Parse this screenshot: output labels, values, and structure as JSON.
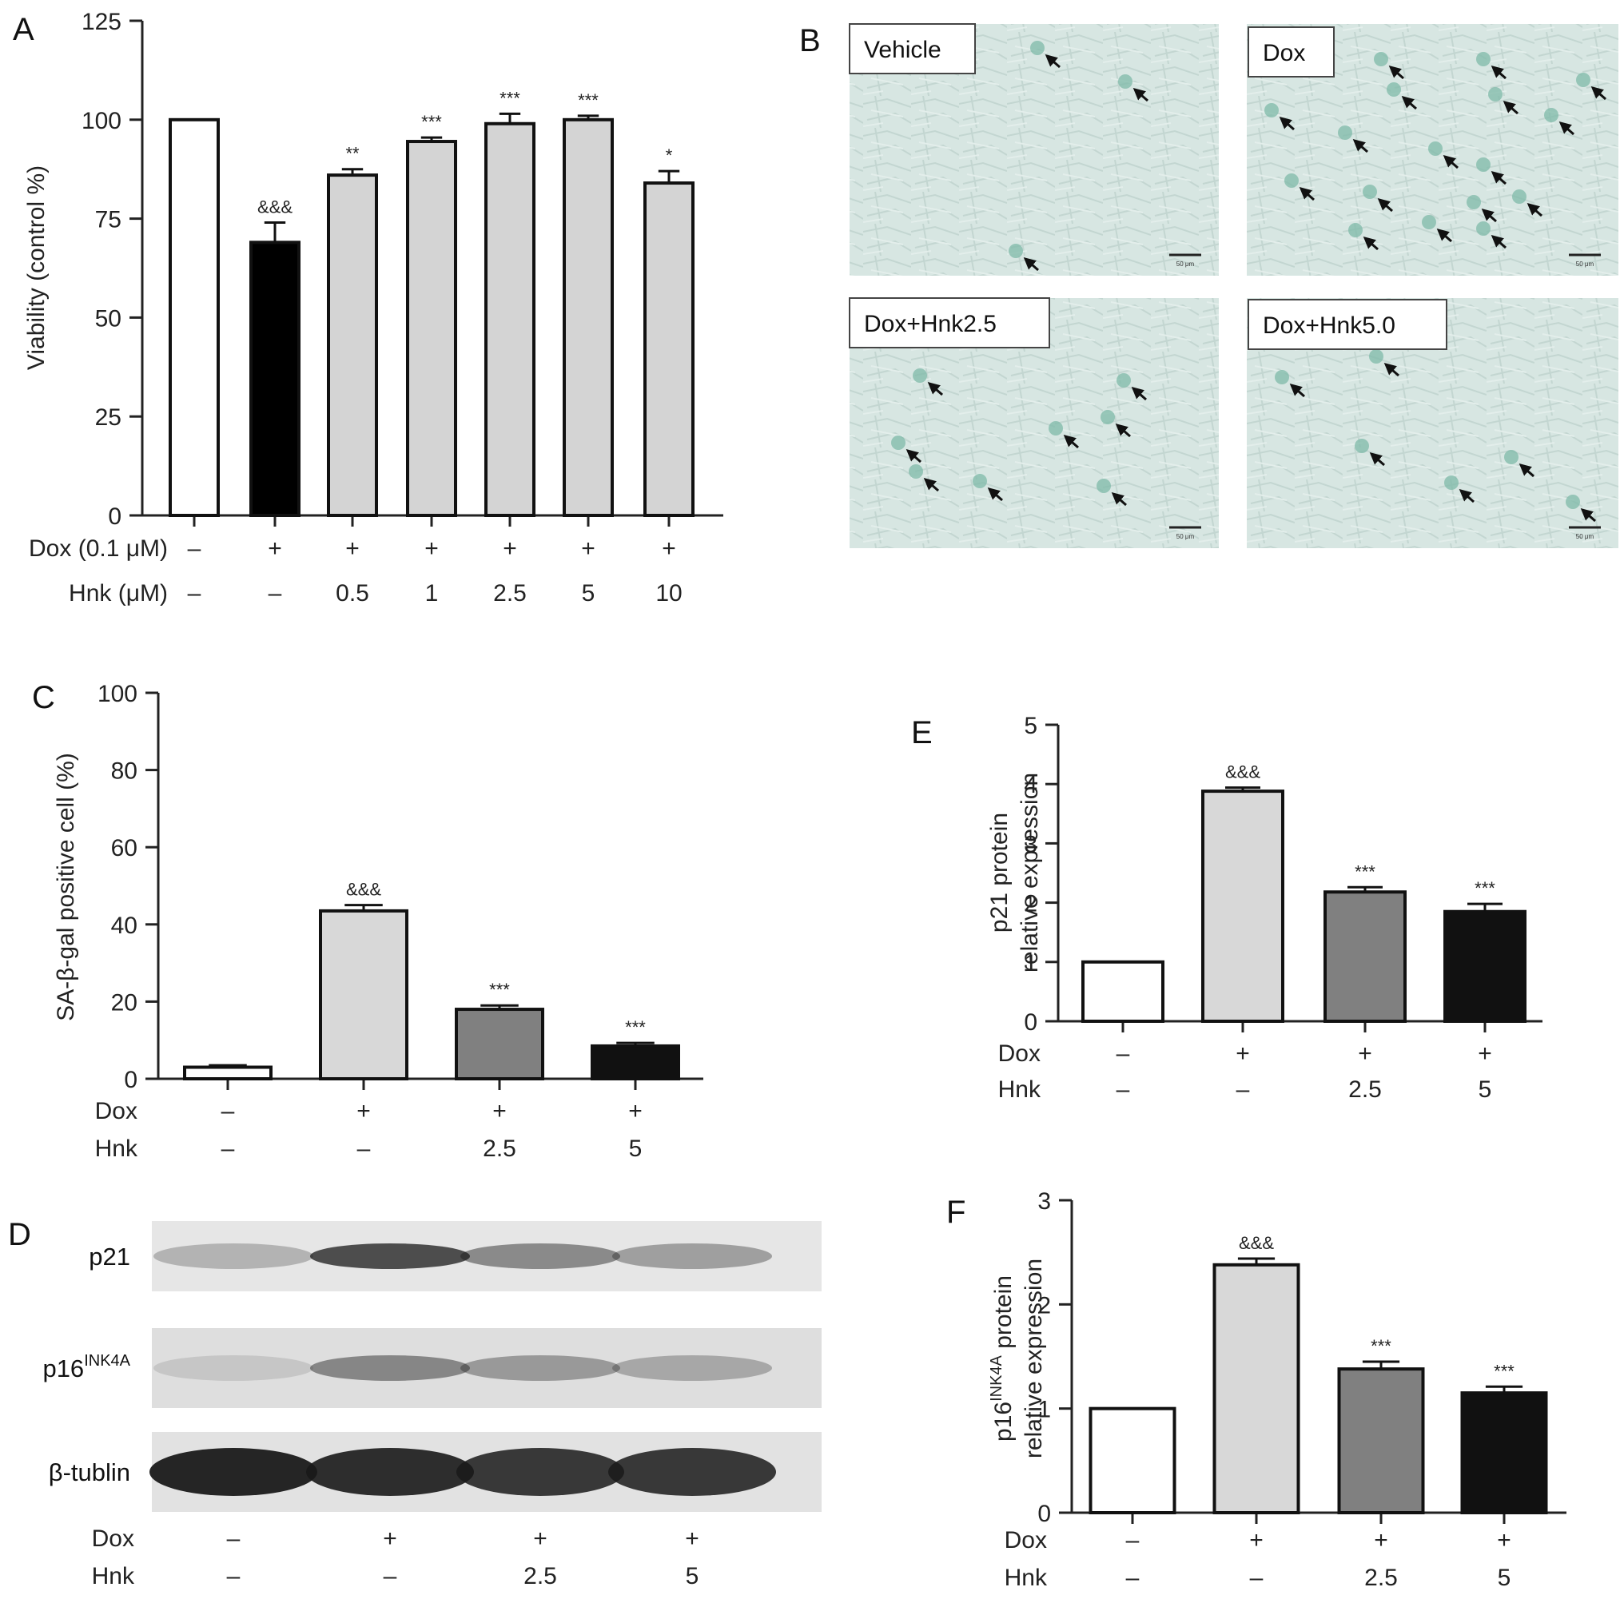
{
  "figure": {
    "panels": [
      "A",
      "B",
      "C",
      "D",
      "E",
      "F"
    ]
  },
  "chart_data": [
    {
      "panel": "A",
      "type": "bar",
      "ylabel": "Viability (control %)",
      "ylim": [
        0,
        125
      ],
      "yticks": [
        0,
        25,
        50,
        75,
        100,
        125
      ],
      "values": [
        100,
        69,
        86,
        94.5,
        99,
        100,
        84
      ],
      "errors": [
        0,
        5,
        1.5,
        1,
        2.5,
        1,
        3
      ],
      "significance": [
        "",
        "&&&",
        "**",
        "***",
        "***",
        "***",
        "*"
      ],
      "fills": [
        "#ffffff",
        "#000000",
        "#d4d4d4",
        "#d4d4d4",
        "#d4d4d4",
        "#d4d4d4",
        "#d4d4d4"
      ],
      "conditions": [
        {
          "label": "Dox (0.1 μM)",
          "values": [
            "–",
            "+",
            "+",
            "+",
            "+",
            "+",
            "+"
          ]
        },
        {
          "label": "Hnk (μM)",
          "values": [
            "–",
            "–",
            "0.5",
            "1",
            "2.5",
            "5",
            "10"
          ]
        }
      ]
    },
    {
      "panel": "C",
      "type": "bar",
      "ylabel": "SA-β-gal positive cell (%)",
      "ylim": [
        0,
        100
      ],
      "yticks": [
        0,
        20,
        40,
        60,
        80,
        100
      ],
      "values": [
        3,
        43.5,
        18,
        8.5
      ],
      "errors": [
        0.5,
        1.5,
        1,
        0.8
      ],
      "significance": [
        "",
        "&&&",
        "***",
        "***"
      ],
      "fills": [
        "#ffffff",
        "#d8d8d8",
        "#808080",
        "#111111"
      ],
      "conditions": [
        {
          "label": "Dox",
          "values": [
            "–",
            "+",
            "+",
            "+"
          ]
        },
        {
          "label": "Hnk",
          "values": [
            "–",
            "–",
            "2.5",
            "5"
          ]
        }
      ]
    },
    {
      "panel": "E",
      "type": "bar",
      "ylabel": [
        "p21 protein",
        "relative expression"
      ],
      "ylim": [
        0,
        5
      ],
      "yticks": [
        0,
        1,
        2,
        3,
        4,
        5
      ],
      "values": [
        1,
        3.88,
        2.18,
        1.85
      ],
      "errors": [
        0,
        0.06,
        0.08,
        0.13
      ],
      "significance": [
        "",
        "&&&",
        "***",
        "***"
      ],
      "fills": [
        "#ffffff",
        "#d8d8d8",
        "#808080",
        "#111111"
      ],
      "conditions": [
        {
          "label": "Dox",
          "values": [
            "–",
            "+",
            "+",
            "+"
          ]
        },
        {
          "label": "Hnk",
          "values": [
            "–",
            "–",
            "2.5",
            "5"
          ]
        }
      ]
    },
    {
      "panel": "F",
      "type": "bar",
      "ylabel": [
        "p16",
        "INK4A",
        " protein",
        "relative expression"
      ],
      "ylim": [
        0,
        3
      ],
      "yticks": [
        0,
        1,
        2,
        3
      ],
      "values": [
        1,
        2.38,
        1.38,
        1.15
      ],
      "errors": [
        0,
        0.06,
        0.07,
        0.06
      ],
      "significance": [
        "",
        "&&&",
        "***",
        "***"
      ],
      "fills": [
        "#ffffff",
        "#d8d8d8",
        "#808080",
        "#111111"
      ],
      "conditions": [
        {
          "label": "Dox",
          "values": [
            "–",
            "+",
            "+",
            "+"
          ]
        },
        {
          "label": "Hnk",
          "values": [
            "–",
            "–",
            "2.5",
            "5"
          ]
        }
      ]
    }
  ],
  "micrographs": {
    "labels": [
      "Vehicle",
      "Dox",
      "Dox+Hnk2.5",
      "Dox+Hnk5.0"
    ],
    "scale_bar": "50 μm"
  },
  "western_blot": {
    "rows": [
      {
        "name": "p21",
        "sup": ""
      },
      {
        "name": "p16",
        "sup": "INK4A"
      },
      {
        "name": "β-tublin",
        "sup": ""
      }
    ],
    "conditions": [
      {
        "label": "Dox",
        "values": [
          "–",
          "+",
          "+",
          "+"
        ]
      },
      {
        "label": "Hnk",
        "values": [
          "–",
          "–",
          "2.5",
          "5"
        ]
      }
    ]
  }
}
